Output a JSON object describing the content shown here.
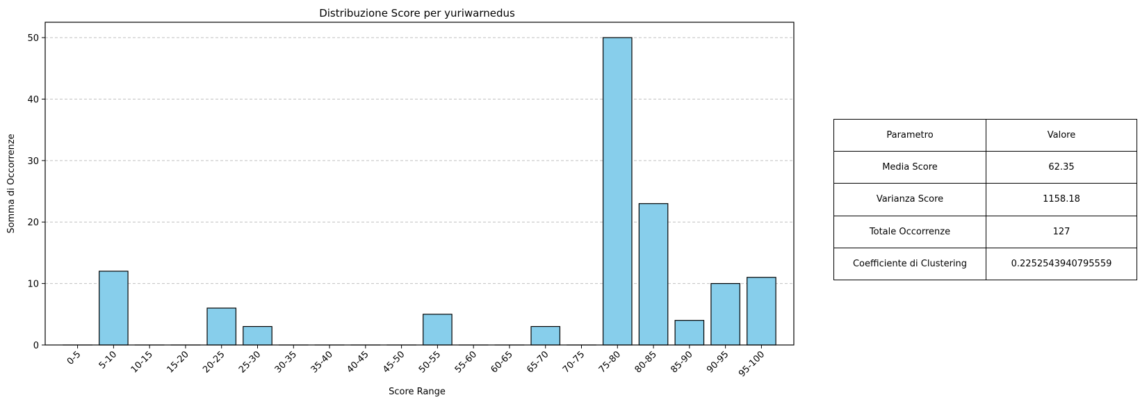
{
  "chart_data": {
    "type": "bar",
    "title": "Distribuzione Score per yuriwarnedus",
    "xlabel": "Score Range",
    "ylabel": "Somma di Occorrenze",
    "categories": [
      "0-5",
      "5-10",
      "10-15",
      "15-20",
      "20-25",
      "25-30",
      "30-35",
      "35-40",
      "40-45",
      "45-50",
      "50-55",
      "55-60",
      "60-65",
      "65-70",
      "70-75",
      "75-80",
      "80-85",
      "85-90",
      "90-95",
      "95-100"
    ],
    "values": [
      0,
      12,
      0,
      0,
      6,
      3,
      0,
      0,
      0,
      0,
      5,
      0,
      0,
      3,
      0,
      50,
      23,
      4,
      10,
      11
    ],
    "ylim": [
      0,
      52.5
    ],
    "yticks": [
      0,
      10,
      20,
      30,
      40,
      50
    ],
    "grid": "y-dashed",
    "colors": {
      "bar_fill": "#87ceeb",
      "bar_edge": "#000000",
      "grid": "#c0c0c0"
    }
  },
  "table": {
    "header": {
      "param": "Parametro",
      "value": "Valore"
    },
    "rows": [
      {
        "param": "Media Score",
        "value": "62.35"
      },
      {
        "param": "Varianza Score",
        "value": "1158.18"
      },
      {
        "param": "Totale Occorrenze",
        "value": "127"
      },
      {
        "param": "Coefficiente di Clustering",
        "value": "0.2252543940795559"
      }
    ]
  }
}
